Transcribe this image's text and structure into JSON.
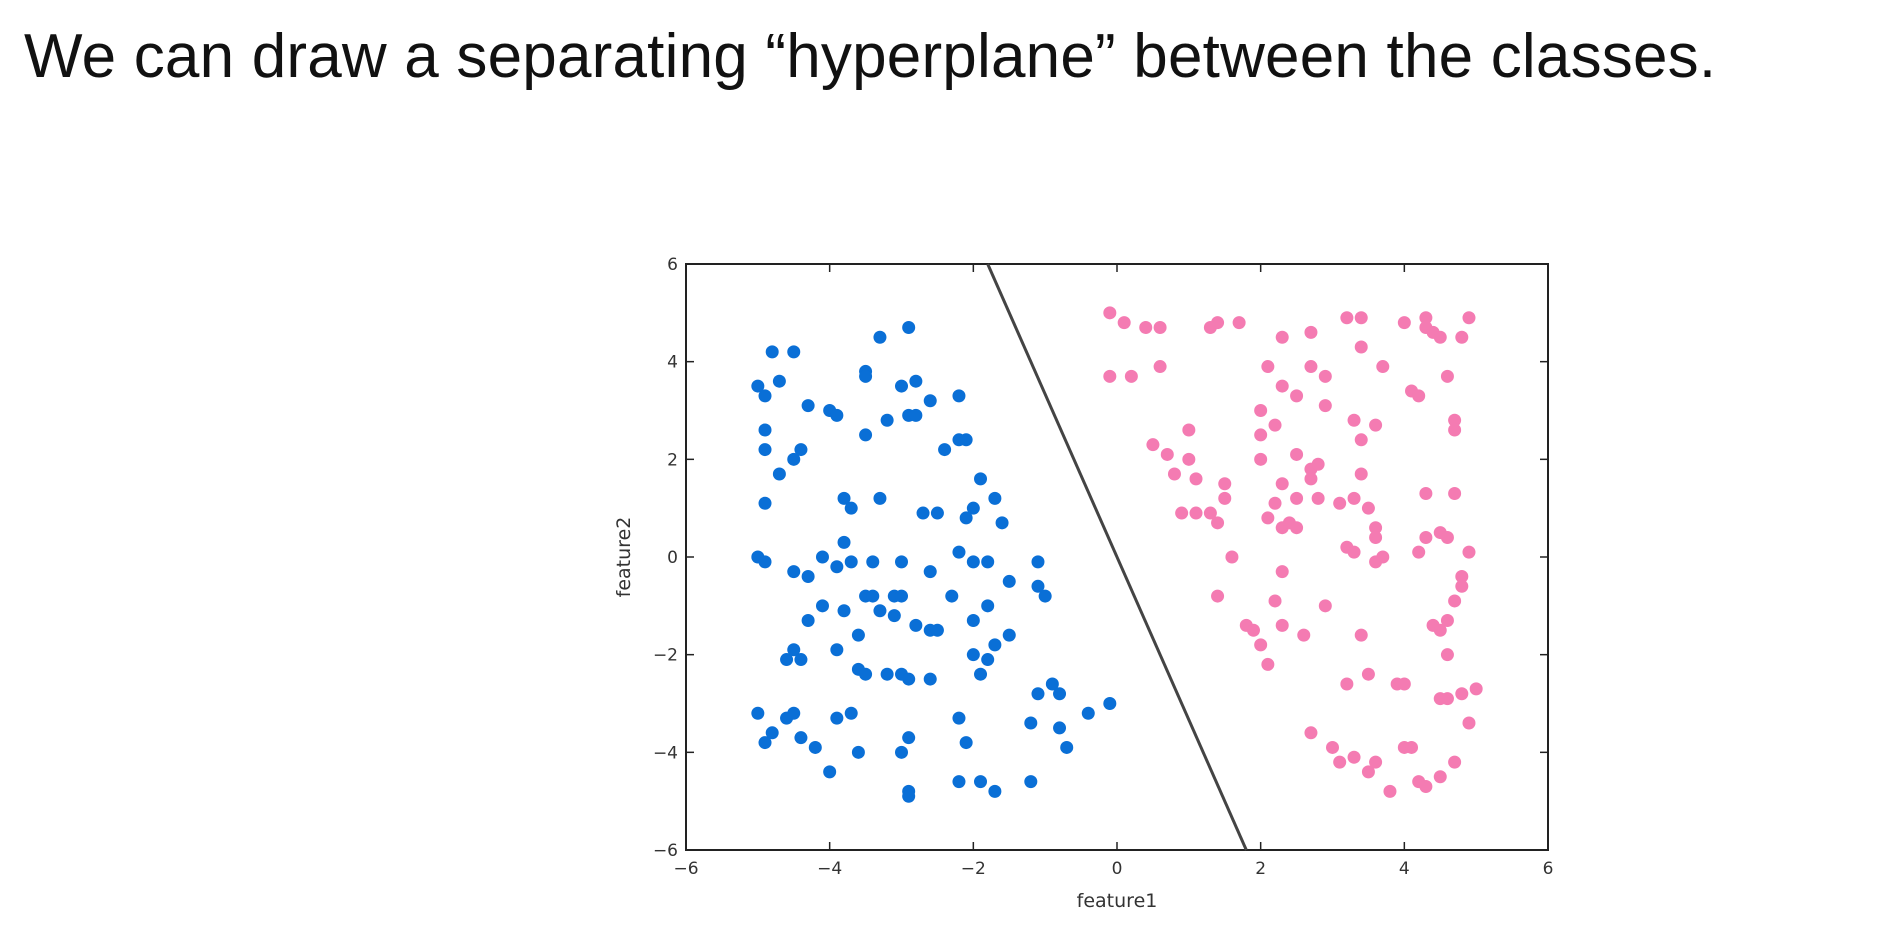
{
  "slide": {
    "title": "We can draw a separating “hyperplane” between the classes."
  },
  "chart_data": {
    "type": "scatter",
    "title": "",
    "xlabel": "feature1",
    "ylabel": "feature2",
    "xlim": [
      -6,
      6
    ],
    "ylim": [
      -6,
      6
    ],
    "xticks": [
      -6,
      -4,
      -2,
      0,
      2,
      4,
      6
    ],
    "yticks": [
      -6,
      -4,
      -2,
      0,
      2,
      4,
      6
    ],
    "grid": false,
    "legend": "none",
    "separator": {
      "type": "line",
      "points": [
        [
          -1.8,
          6
        ],
        [
          1.8,
          -6
        ]
      ],
      "color": "#444444"
    },
    "series": [
      {
        "color": "#0a6fd6",
        "points": [
          [
            -4.8,
            4.2
          ],
          [
            -4.5,
            4.2
          ],
          [
            -5.0,
            3.5
          ],
          [
            -4.9,
            3.3
          ],
          [
            -4.7,
            3.6
          ],
          [
            -4.3,
            3.1
          ],
          [
            -4.0,
            3.0
          ],
          [
            -3.9,
            2.9
          ],
          [
            -3.3,
            4.5
          ],
          [
            -2.9,
            4.7
          ],
          [
            -3.5,
            3.8
          ],
          [
            -3.5,
            3.7
          ],
          [
            -2.8,
            3.6
          ],
          [
            -3.0,
            3.5
          ],
          [
            -2.6,
            3.2
          ],
          [
            -2.2,
            3.3
          ],
          [
            -2.9,
            2.9
          ],
          [
            -2.8,
            2.9
          ],
          [
            -3.2,
            2.8
          ],
          [
            -3.5,
            2.5
          ],
          [
            -4.9,
            2.6
          ],
          [
            -4.9,
            2.2
          ],
          [
            -4.4,
            2.2
          ],
          [
            -4.5,
            2.0
          ],
          [
            -4.7,
            1.7
          ],
          [
            -2.1,
            2.4
          ],
          [
            -2.2,
            2.4
          ],
          [
            -2.4,
            2.2
          ],
          [
            -1.9,
            1.6
          ],
          [
            -4.9,
            1.1
          ],
          [
            -3.8,
            1.2
          ],
          [
            -3.7,
            1.0
          ],
          [
            -3.3,
            1.2
          ],
          [
            -2.7,
            0.9
          ],
          [
            -2.5,
            0.9
          ],
          [
            -2.0,
            1.0
          ],
          [
            -2.1,
            0.8
          ],
          [
            -1.7,
            1.2
          ],
          [
            -1.6,
            0.7
          ],
          [
            -3.8,
            0.3
          ],
          [
            -5.0,
            0.0
          ],
          [
            -4.9,
            -0.1
          ],
          [
            -4.5,
            -0.3
          ],
          [
            -4.3,
            -0.4
          ],
          [
            -4.1,
            0.0
          ],
          [
            -3.9,
            -0.2
          ],
          [
            -3.7,
            -0.1
          ],
          [
            -3.4,
            -0.1
          ],
          [
            -3.0,
            -0.1
          ],
          [
            -2.6,
            -0.3
          ],
          [
            -2.2,
            0.1
          ],
          [
            -2.0,
            -0.1
          ],
          [
            -1.8,
            -0.1
          ],
          [
            -1.1,
            -0.1
          ],
          [
            -1.5,
            -0.5
          ],
          [
            -1.1,
            -0.6
          ],
          [
            -1.0,
            -0.8
          ],
          [
            -3.5,
            -0.8
          ],
          [
            -3.4,
            -0.8
          ],
          [
            -3.1,
            -0.8
          ],
          [
            -3.0,
            -0.8
          ],
          [
            -2.3,
            -0.8
          ],
          [
            -4.1,
            -1.0
          ],
          [
            -3.8,
            -1.1
          ],
          [
            -3.3,
            -1.1
          ],
          [
            -3.1,
            -1.2
          ],
          [
            -4.3,
            -1.3
          ],
          [
            -2.8,
            -1.4
          ],
          [
            -2.6,
            -1.5
          ],
          [
            -2.5,
            -1.5
          ],
          [
            -2.0,
            -1.3
          ],
          [
            -1.8,
            -1.0
          ],
          [
            -1.5,
            -1.6
          ],
          [
            -1.7,
            -1.8
          ],
          [
            -3.6,
            -1.6
          ],
          [
            -3.9,
            -1.9
          ],
          [
            -4.5,
            -1.9
          ],
          [
            -4.6,
            -2.1
          ],
          [
            -4.4,
            -2.1
          ],
          [
            -3.6,
            -2.3
          ],
          [
            -3.5,
            -2.4
          ],
          [
            -3.2,
            -2.4
          ],
          [
            -3.0,
            -2.4
          ],
          [
            -2.9,
            -2.5
          ],
          [
            -2.6,
            -2.5
          ],
          [
            -2.0,
            -2.0
          ],
          [
            -1.8,
            -2.1
          ],
          [
            -1.9,
            -2.4
          ],
          [
            -1.1,
            -2.8
          ],
          [
            -0.9,
            -2.6
          ],
          [
            -0.8,
            -2.8
          ],
          [
            -0.4,
            -3.2
          ],
          [
            -0.1,
            -3.0
          ],
          [
            -5.0,
            -3.2
          ],
          [
            -4.8,
            -3.6
          ],
          [
            -4.9,
            -3.8
          ],
          [
            -4.6,
            -3.3
          ],
          [
            -4.5,
            -3.2
          ],
          [
            -4.4,
            -3.7
          ],
          [
            -4.2,
            -3.9
          ],
          [
            -3.9,
            -3.3
          ],
          [
            -3.7,
            -3.2
          ],
          [
            -3.6,
            -4.0
          ],
          [
            -4.0,
            -4.4
          ],
          [
            -2.9,
            -3.7
          ],
          [
            -3.0,
            -4.0
          ],
          [
            -2.2,
            -3.3
          ],
          [
            -2.1,
            -3.8
          ],
          [
            -1.2,
            -3.4
          ],
          [
            -0.8,
            -3.5
          ],
          [
            -0.7,
            -3.9
          ],
          [
            -2.2,
            -4.6
          ],
          [
            -1.9,
            -4.6
          ],
          [
            -1.7,
            -4.8
          ],
          [
            -1.2,
            -4.6
          ],
          [
            -2.9,
            -4.8
          ],
          [
            -2.9,
            -4.9
          ]
        ]
      },
      {
        "color": "#f47bb2",
        "points": [
          [
            -0.1,
            5.0
          ],
          [
            0.1,
            4.8
          ],
          [
            0.4,
            4.7
          ],
          [
            0.6,
            4.7
          ],
          [
            1.3,
            4.7
          ],
          [
            1.4,
            4.8
          ],
          [
            1.7,
            4.8
          ],
          [
            2.3,
            4.5
          ],
          [
            2.7,
            4.6
          ],
          [
            3.2,
            4.9
          ],
          [
            3.4,
            4.9
          ],
          [
            4.0,
            4.8
          ],
          [
            4.3,
            4.9
          ],
          [
            4.3,
            4.7
          ],
          [
            4.4,
            4.6
          ],
          [
            4.5,
            4.5
          ],
          [
            4.9,
            4.9
          ],
          [
            4.8,
            4.5
          ],
          [
            -0.1,
            3.7
          ],
          [
            0.2,
            3.7
          ],
          [
            0.6,
            3.9
          ],
          [
            2.1,
            3.9
          ],
          [
            2.7,
            3.9
          ],
          [
            2.9,
            3.7
          ],
          [
            3.4,
            4.3
          ],
          [
            3.7,
            3.9
          ],
          [
            4.6,
            3.7
          ],
          [
            2.3,
            3.5
          ],
          [
            2.5,
            3.3
          ],
          [
            4.1,
            3.4
          ],
          [
            4.2,
            3.3
          ],
          [
            2.0,
            3.0
          ],
          [
            2.2,
            2.7
          ],
          [
            2.9,
            3.1
          ],
          [
            3.3,
            2.8
          ],
          [
            3.6,
            2.7
          ],
          [
            4.7,
            2.8
          ],
          [
            4.7,
            2.6
          ],
          [
            1.0,
            2.6
          ],
          [
            2.0,
            2.5
          ],
          [
            0.5,
            2.3
          ],
          [
            0.7,
            2.1
          ],
          [
            3.4,
            2.4
          ],
          [
            1.0,
            2.0
          ],
          [
            2.0,
            2.0
          ],
          [
            2.5,
            2.1
          ],
          [
            2.7,
            1.8
          ],
          [
            2.8,
            1.9
          ],
          [
            0.8,
            1.7
          ],
          [
            1.1,
            1.6
          ],
          [
            1.5,
            1.5
          ],
          [
            2.3,
            1.5
          ],
          [
            2.7,
            1.6
          ],
          [
            3.4,
            1.7
          ],
          [
            4.3,
            1.3
          ],
          [
            4.7,
            1.3
          ],
          [
            1.5,
            1.2
          ],
          [
            2.2,
            1.1
          ],
          [
            2.5,
            1.2
          ],
          [
            2.8,
            1.2
          ],
          [
            3.1,
            1.1
          ],
          [
            3.3,
            1.2
          ],
          [
            3.5,
            1.0
          ],
          [
            0.9,
            0.9
          ],
          [
            1.1,
            0.9
          ],
          [
            1.3,
            0.9
          ],
          [
            1.4,
            0.7
          ],
          [
            2.1,
            0.8
          ],
          [
            2.3,
            0.6
          ],
          [
            2.4,
            0.7
          ],
          [
            2.5,
            0.6
          ],
          [
            3.6,
            0.6
          ],
          [
            3.6,
            0.4
          ],
          [
            4.3,
            0.4
          ],
          [
            4.5,
            0.5
          ],
          [
            4.6,
            0.4
          ],
          [
            1.6,
            0.0
          ],
          [
            3.2,
            0.2
          ],
          [
            3.3,
            0.1
          ],
          [
            3.6,
            -0.1
          ],
          [
            3.7,
            0.0
          ],
          [
            4.2,
            0.1
          ],
          [
            4.9,
            0.1
          ],
          [
            2.3,
            -0.3
          ],
          [
            4.8,
            -0.4
          ],
          [
            4.8,
            -0.6
          ],
          [
            1.4,
            -0.8
          ],
          [
            2.2,
            -0.9
          ],
          [
            2.9,
            -1.0
          ],
          [
            4.7,
            -0.9
          ],
          [
            1.8,
            -1.4
          ],
          [
            1.9,
            -1.5
          ],
          [
            2.0,
            -1.8
          ],
          [
            2.3,
            -1.4
          ],
          [
            2.6,
            -1.6
          ],
          [
            3.4,
            -1.6
          ],
          [
            4.4,
            -1.4
          ],
          [
            4.5,
            -1.5
          ],
          [
            4.6,
            -1.3
          ],
          [
            2.1,
            -2.2
          ],
          [
            4.6,
            -2.0
          ],
          [
            3.2,
            -2.6
          ],
          [
            3.5,
            -2.4
          ],
          [
            3.9,
            -2.6
          ],
          [
            4.0,
            -2.6
          ],
          [
            4.5,
            -2.9
          ],
          [
            4.6,
            -2.9
          ],
          [
            4.8,
            -2.8
          ],
          [
            5.0,
            -2.7
          ],
          [
            2.7,
            -3.6
          ],
          [
            3.0,
            -3.9
          ],
          [
            3.1,
            -4.2
          ],
          [
            3.3,
            -4.1
          ],
          [
            3.5,
            -4.4
          ],
          [
            3.6,
            -4.2
          ],
          [
            4.0,
            -3.9
          ],
          [
            4.1,
            -3.9
          ],
          [
            4.9,
            -3.4
          ],
          [
            3.8,
            -4.8
          ],
          [
            4.2,
            -4.6
          ],
          [
            4.3,
            -4.7
          ],
          [
            4.5,
            -4.5
          ],
          [
            4.7,
            -4.2
          ]
        ]
      }
    ]
  }
}
